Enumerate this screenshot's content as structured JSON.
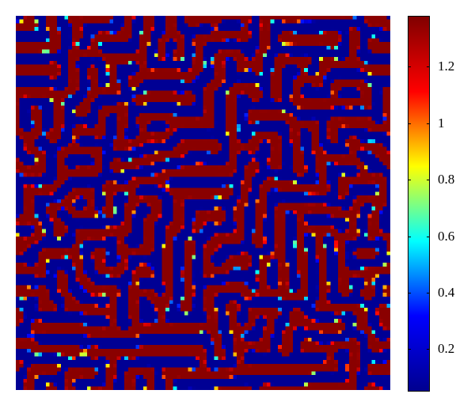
{
  "chart_data": {
    "type": "heatmap",
    "title": "",
    "xlabel": "",
    "ylabel": "",
    "grid": false,
    "pattern": "Turing-type labyrinthine pattern of spots and stripes",
    "value_range": [
      0.05,
      1.38
    ],
    "colormap": "jet",
    "colormap_stops": [
      "#00008f",
      "#0000ff",
      "#00ffff",
      "#ffff00",
      "#ff0000",
      "#800000"
    ],
    "colorbar": {
      "placement": "right",
      "ticks": [
        {
          "value": 0.2,
          "label": "0.2"
        },
        {
          "value": 0.4,
          "label": "0.4"
        },
        {
          "value": 0.6,
          "label": "0.6"
        },
        {
          "value": 0.8,
          "label": "0.8"
        },
        {
          "value": 1.0,
          "label": "1"
        },
        {
          "value": 1.2,
          "label": "1.2"
        }
      ]
    }
  }
}
